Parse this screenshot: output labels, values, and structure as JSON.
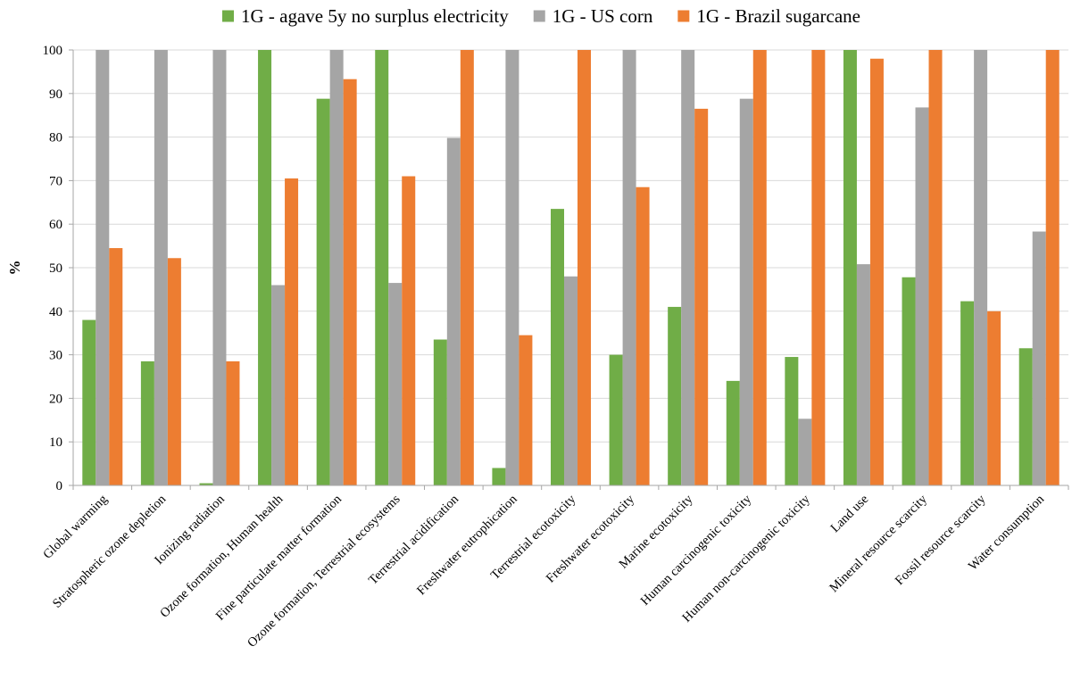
{
  "chart_data": {
    "type": "bar",
    "title": "",
    "xlabel": "",
    "ylabel": "%",
    "ylim": [
      0,
      100
    ],
    "yticks": [
      "0",
      "10",
      "20",
      "30",
      "40",
      "50",
      "60",
      "70",
      "80",
      "90",
      "100"
    ],
    "grid": true,
    "legend_position": "top",
    "categories": [
      "Global warming",
      "Stratospheric ozone depletion",
      "Ionizing radiation",
      "Ozone formation, Human health",
      "Fine particulate matter formation",
      "Ozone formation, Terrestrial ecosystems",
      "Terrestrial acidification",
      "Freshwater eutrophication",
      "Terrestrial ecotoxicity",
      "Freshwater ecotoxicity",
      "Marine ecotoxicity",
      "Human carcinogenic toxicity",
      "Human non-carcinogenic toxicity",
      "Land use",
      "Mineral resource scarcity",
      "Fossil resource scarcity",
      "Water consumption"
    ],
    "series": [
      {
        "name": "1G - agave 5y no surplus electricity",
        "color": "#70ad47",
        "values": [
          38,
          28.5,
          0.5,
          100,
          88.8,
          100,
          33.5,
          4,
          63.5,
          30,
          41,
          24,
          29.5,
          100,
          47.8,
          42.3,
          31.5
        ]
      },
      {
        "name": "1G - US corn",
        "color": "#a5a5a5",
        "values": [
          100,
          100,
          100,
          46,
          100,
          46.5,
          79.8,
          100,
          48,
          100,
          100,
          88.8,
          15.3,
          50.8,
          86.8,
          100,
          58.3
        ]
      },
      {
        "name": "1G - Brazil sugarcane",
        "color": "#ed7d31",
        "values": [
          54.5,
          52.2,
          28.5,
          70.5,
          93.3,
          71,
          100,
          34.5,
          100,
          68.5,
          86.5,
          100,
          100,
          98,
          100,
          40,
          100
        ]
      }
    ]
  }
}
